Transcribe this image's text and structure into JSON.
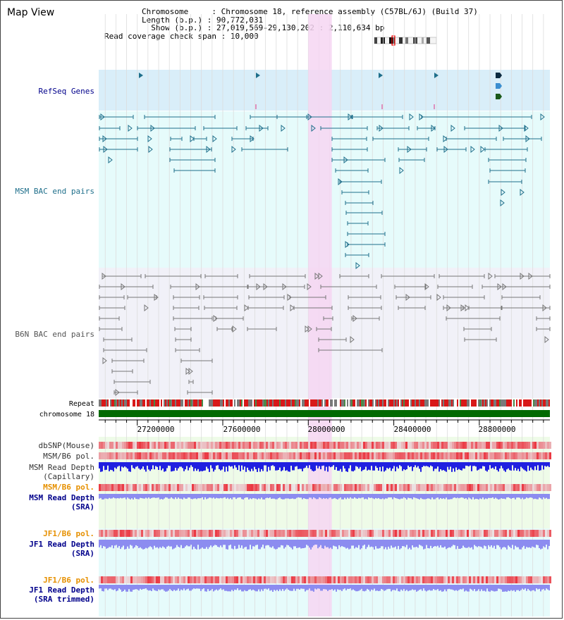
{
  "window": {
    "title": "Map View"
  },
  "info": {
    "chromosome_label": "Chromosome",
    "chromosome_value": "Chromosome 18, reference assembly (C57BL/6J) (Build 37)",
    "length_label": "Length (b.p.)",
    "length_value": "90,772,031",
    "show_label": "Show (b.p.)",
    "show_value": "27,019,569-29,130,202 : 2,110,634 bp",
    "coverage_label": "Read coverage check span",
    "coverage_value": "10,000"
  },
  "view": {
    "start": 27019569,
    "end": 29130202,
    "highlight": [
      28000000,
      28110000
    ]
  },
  "tracks": {
    "refseq": "RefSeq Genes",
    "msm_bac": "MSM BAC end pairs",
    "b6n_bac": "B6N BAC end pairs",
    "repeat": "Repeat",
    "chromosome": "chromosome 18",
    "dbsnp": "dbSNP(Mouse)",
    "msm_b6_pol_1": "MSM/B6 pol.",
    "msm_read_depth_cap_1": "MSM Read Depth",
    "msm_read_depth_cap_2": "(Capillary)",
    "msm_b6_pol_2": "MSM/B6 pol.",
    "msm_read_depth_sra_1": "MSM Read Depth",
    "msm_read_depth_sra_2": "(SRA)",
    "jf1_b6_pol_1": "JF1/B6 pol.",
    "jf1_read_depth_sra_1": "JF1 Read Depth",
    "jf1_read_depth_sra_2": "(SRA)",
    "jf1_b6_pol_2": "JF1/B6 pol.",
    "jf1_read_depth_trim_1": "JF1 Read Depth",
    "jf1_read_depth_trim_2": "(SRA trimmed)"
  },
  "axis": {
    "ticks": [
      "27200000",
      "27600000",
      "28000000",
      "28400000",
      "28800000"
    ]
  },
  "colors": {
    "refseq_bg": "#d9eef9",
    "msm_bg": "#e6fbfb",
    "b6n_bg": "#f1f1f8",
    "highlight": "#f6d6f2",
    "chromosome": "#006a00",
    "msm_color": "#1f6f8b",
    "b6n_color": "#777777",
    "depth_cap": "#2020e0",
    "depth_sra": "#8c8cf0",
    "label_blue": "#00008b",
    "label_orange": "#e69000",
    "label_teal": "#1f6f8b"
  }
}
